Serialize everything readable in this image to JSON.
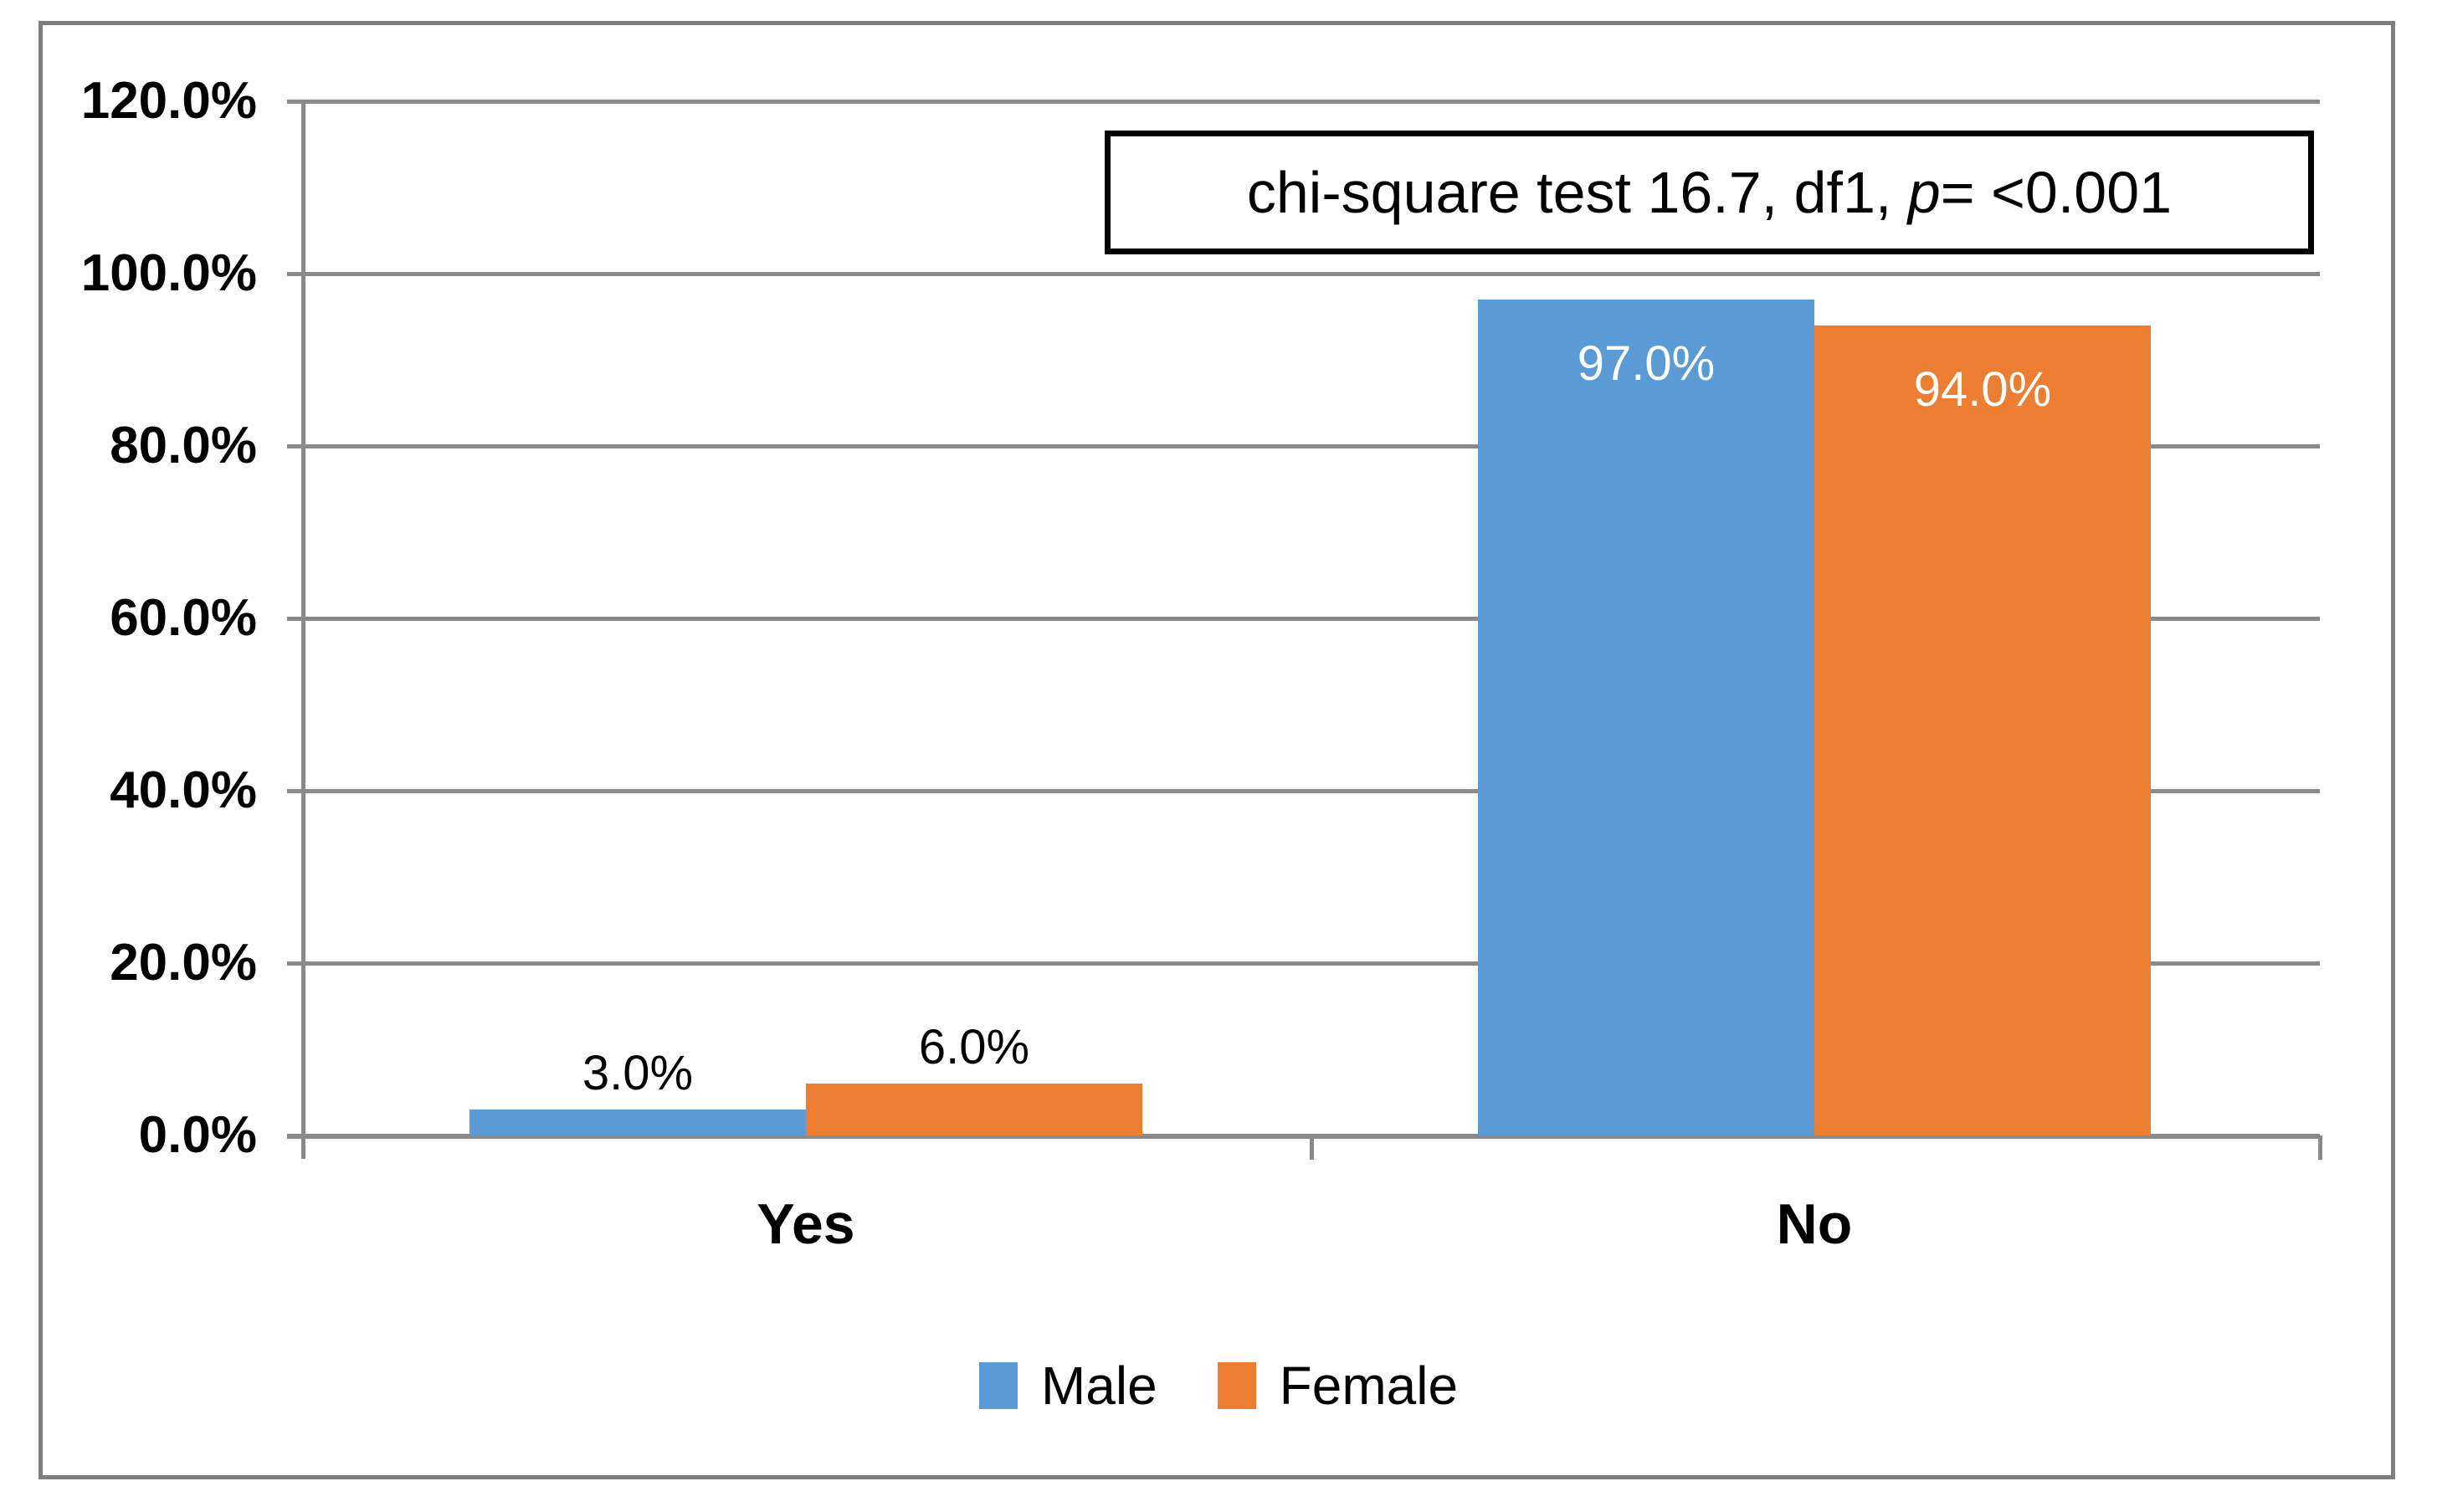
{
  "chart_data": {
    "type": "bar",
    "title": "",
    "xlabel": "",
    "ylabel": "",
    "categories": [
      "Yes",
      "No"
    ],
    "series": [
      {
        "name": "Male",
        "color": "#5B9BD5",
        "values": [
          3.0,
          97.0
        ],
        "data_labels": [
          "3.0%",
          "97.0%"
        ]
      },
      {
        "name": "Female",
        "color": "#ED7D31",
        "values": [
          6.0,
          94.0
        ],
        "data_labels": [
          "6.0%",
          "94.0%"
        ]
      }
    ],
    "y_ticks": [
      "120.0%",
      "100.0%",
      "80.0%",
      "60.0%",
      "40.0%",
      "20.0%",
      "0.0%"
    ],
    "ylim": [
      0,
      120
    ],
    "grid": true,
    "legend_position": "bottom",
    "annotation": {
      "text_before_p": "chi-square test 16.7, df1, ",
      "p_symbol": "p",
      "text_after_p": "= <0.001"
    },
    "colors": {
      "male_bar": "#5B9BD5",
      "female_bar": "#ED7D31",
      "gridline": "#8A8A8A",
      "outer_border": "#7F7F7F",
      "inside_data_label": "#FFFFFF",
      "outside_data_label": "#000000",
      "annotation_border": "#000000"
    }
  }
}
